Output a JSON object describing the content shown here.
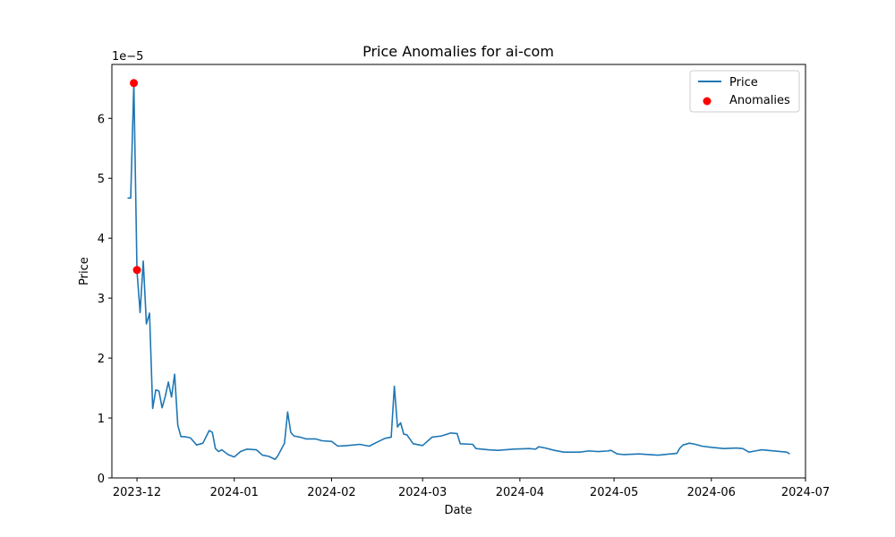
{
  "chart_data": {
    "type": "line",
    "title": "Price Anomalies for ai-com",
    "xlabel": "Date",
    "ylabel": "Price",
    "y_scale_label": "1e−5",
    "ylim": [
      0,
      6.9
    ],
    "xlim": [
      "2023-11-23",
      "2024-07-01"
    ],
    "grid": false,
    "legend": {
      "position": "top-right",
      "entries": [
        "Price",
        "Anomalies"
      ]
    },
    "x_ticks": [
      "2023-12",
      "2024-01",
      "2024-02",
      "2024-03",
      "2024-04",
      "2024-05",
      "2024-06",
      "2024-07"
    ],
    "y_ticks": [
      "0",
      "1",
      "2",
      "3",
      "4",
      "5",
      "6"
    ],
    "y_tick_values": [
      0,
      1,
      2,
      3,
      4,
      5,
      6
    ],
    "colors": {
      "price": "#1f77b4",
      "anomalies": "#ff0000"
    },
    "series": [
      {
        "name": "Price",
        "x": [
          "2023-11-28",
          "2023-11-29",
          "2023-11-30",
          "2023-12-01",
          "2023-12-02",
          "2023-12-03",
          "2023-12-04",
          "2023-12-05",
          "2023-12-06",
          "2023-12-07",
          "2023-12-08",
          "2023-12-09",
          "2023-12-10",
          "2023-12-11",
          "2023-12-12",
          "2023-12-13",
          "2023-12-14",
          "2023-12-15",
          "2023-12-16",
          "2023-12-18",
          "2023-12-20",
          "2023-12-22",
          "2023-12-24",
          "2023-12-25",
          "2023-12-26",
          "2023-12-27",
          "2023-12-28",
          "2023-12-30",
          "2024-01-01",
          "2024-01-03",
          "2024-01-05",
          "2024-01-08",
          "2024-01-10",
          "2024-01-12",
          "2024-01-14",
          "2024-01-15",
          "2024-01-17",
          "2024-01-18",
          "2024-01-19",
          "2024-01-20",
          "2024-01-22",
          "2024-01-24",
          "2024-01-27",
          "2024-01-29",
          "2024-02-01",
          "2024-02-03",
          "2024-02-06",
          "2024-02-10",
          "2024-02-13",
          "2024-02-16",
          "2024-02-18",
          "2024-02-20",
          "2024-02-21",
          "2024-02-22",
          "2024-02-23",
          "2024-02-24",
          "2024-02-25",
          "2024-02-27",
          "2024-03-01",
          "2024-03-04",
          "2024-03-07",
          "2024-03-10",
          "2024-03-12",
          "2024-03-13",
          "2024-03-17",
          "2024-03-18",
          "2024-03-22",
          "2024-03-25",
          "2024-03-30",
          "2024-04-04",
          "2024-04-06",
          "2024-04-07",
          "2024-04-09",
          "2024-04-12",
          "2024-04-15",
          "2024-04-20",
          "2024-04-23",
          "2024-04-26",
          "2024-04-29",
          "2024-04-30",
          "2024-05-02",
          "2024-05-04",
          "2024-05-09",
          "2024-05-15",
          "2024-05-19",
          "2024-05-21",
          "2024-05-22",
          "2024-05-23",
          "2024-05-25",
          "2024-05-27",
          "2024-05-29",
          "2024-06-01",
          "2024-06-05",
          "2024-06-09",
          "2024-06-11",
          "2024-06-13",
          "2024-06-15",
          "2024-06-17",
          "2024-06-19",
          "2024-06-25",
          "2024-06-26"
        ],
        "values": [
          4.67,
          4.67,
          6.6,
          3.45,
          2.76,
          3.62,
          2.57,
          2.75,
          1.16,
          1.47,
          1.45,
          1.17,
          1.36,
          1.6,
          1.35,
          1.73,
          0.88,
          0.69,
          0.69,
          0.67,
          0.55,
          0.58,
          0.79,
          0.76,
          0.49,
          0.44,
          0.47,
          0.39,
          0.35,
          0.44,
          0.48,
          0.47,
          0.38,
          0.36,
          0.31,
          0.38,
          0.58,
          1.1,
          0.76,
          0.7,
          0.68,
          0.65,
          0.65,
          0.62,
          0.61,
          0.53,
          0.54,
          0.56,
          0.53,
          0.61,
          0.66,
          0.68,
          1.53,
          0.85,
          0.92,
          0.73,
          0.72,
          0.57,
          0.54,
          0.68,
          0.7,
          0.75,
          0.74,
          0.57,
          0.56,
          0.49,
          0.47,
          0.46,
          0.48,
          0.49,
          0.48,
          0.52,
          0.5,
          0.46,
          0.43,
          0.43,
          0.45,
          0.44,
          0.45,
          0.46,
          0.4,
          0.39,
          0.4,
          0.38,
          0.4,
          0.41,
          0.5,
          0.55,
          0.58,
          0.56,
          0.53,
          0.51,
          0.49,
          0.5,
          0.49,
          0.43,
          0.45,
          0.47,
          0.46,
          0.43,
          0.4
        ]
      },
      {
        "name": "Anomalies",
        "x": [
          "2023-11-30",
          "2023-12-01"
        ],
        "values": [
          6.59,
          3.47
        ]
      }
    ]
  }
}
